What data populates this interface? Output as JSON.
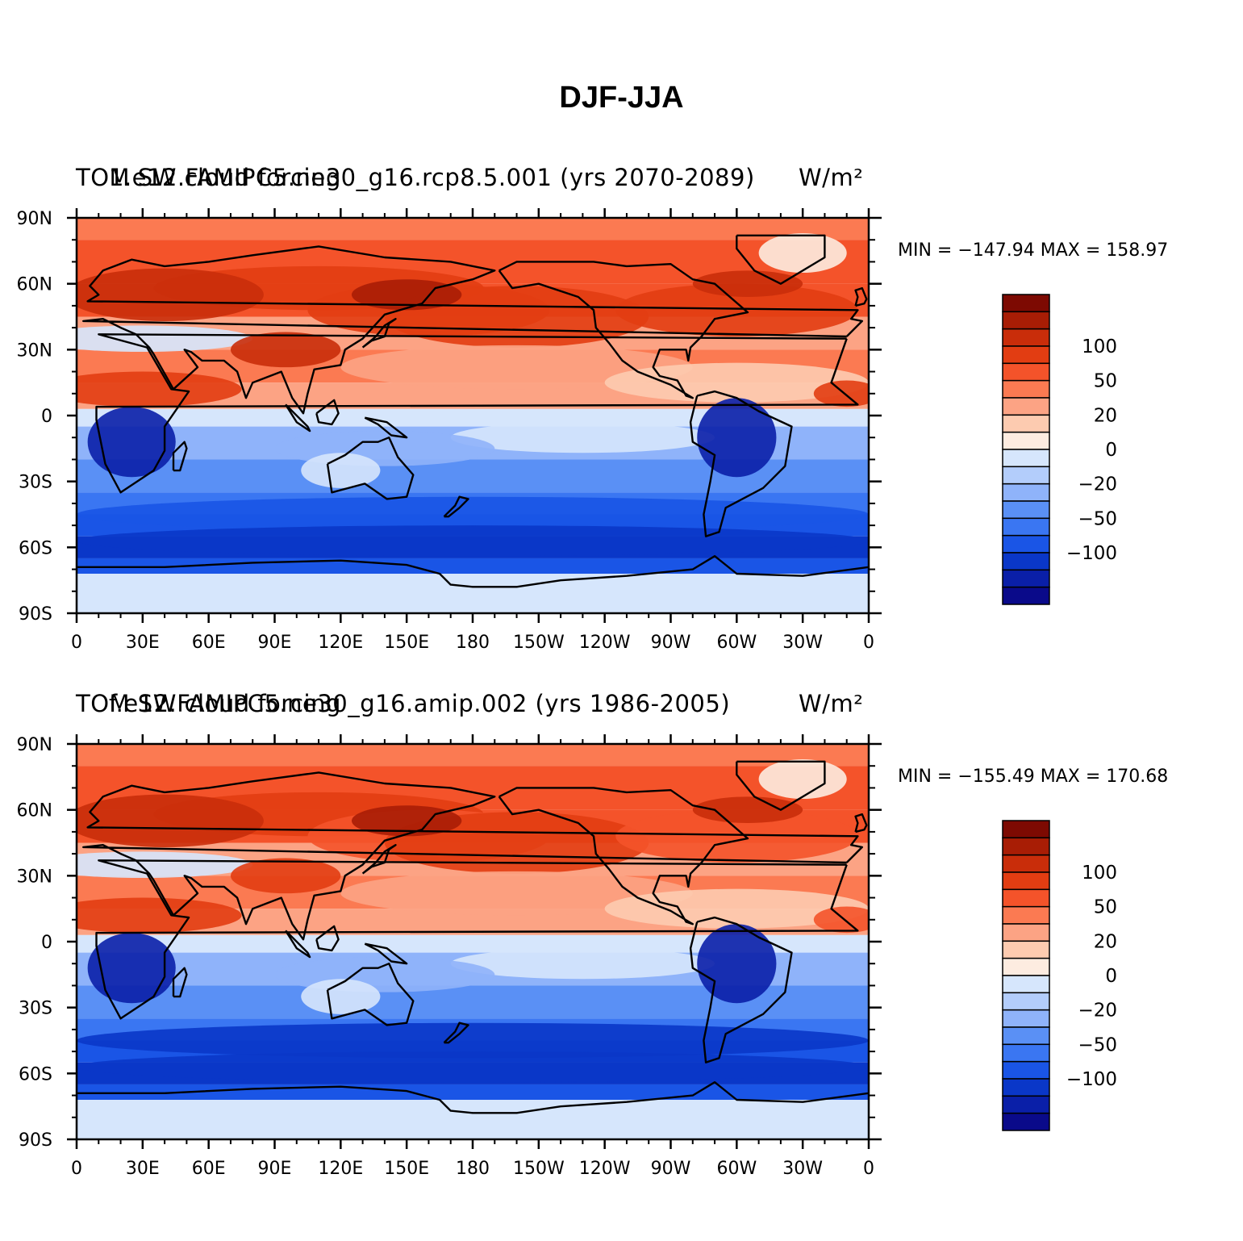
{
  "title": "DJF-JJA",
  "x_ticks": [
    "0",
    "30E",
    "60E",
    "90E",
    "120E",
    "150E",
    "180",
    "150W",
    "120W",
    "90W",
    "60W",
    "30W",
    "0"
  ],
  "y_ticks": [
    "90N",
    "60N",
    "30N",
    "0",
    "30S",
    "60S",
    "90S"
  ],
  "colorbar": {
    "colors": [
      "#0a0a8a",
      "#0a1fa8",
      "#0a37c8",
      "#1a55e6",
      "#3a76f2",
      "#5a90f5",
      "#8fb3fa",
      "#b3cdfb",
      "#d6e6fc",
      "#fdece0",
      "#fdcbb0",
      "#fca384",
      "#fb7a52",
      "#f4532a",
      "#e23d12",
      "#c92d0a",
      "#a81d05",
      "#7d0a02"
    ],
    "tick_labels": [
      {
        "boundary": 2,
        "text": "100"
      },
      {
        "boundary": 4,
        "text": "50"
      },
      {
        "boundary": 6,
        "text": "20"
      },
      {
        "boundary": 8,
        "text": "0"
      },
      {
        "boundary": 10,
        "text": "−20"
      },
      {
        "boundary": 12,
        "text": "−50"
      },
      {
        "boundary": 14,
        "text": "−100"
      }
    ]
  },
  "panels": [
    {
      "left_label": "TOM SW cloud forcing",
      "center_label": "1.e12.FAMIPC5.ne30_g16.rcp8.5.001 (yrs 2070-2089)",
      "units": "W/m²",
      "minmax": "MIN = −147.94  MAX = 158.97"
    },
    {
      "left_label": "TOM SW cloud forcing",
      "center_label": "f.e12.FAMIPC5.ne30_g16.amip.002 (yrs 1986-2005)",
      "units": "W/m²",
      "minmax": "MIN = −155.49  MAX = 170.68"
    }
  ]
}
